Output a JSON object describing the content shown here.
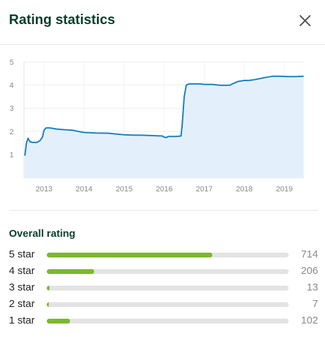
{
  "dialog": {
    "title": "Rating statistics",
    "close_icon": "close-icon"
  },
  "chart_data": {
    "type": "area",
    "title": "",
    "xlabel": "",
    "ylabel": "",
    "y_ticks": [
      "1",
      "2",
      "3",
      "4",
      "5"
    ],
    "x_ticks": [
      "2013",
      "2014",
      "2015",
      "2016",
      "2017",
      "2018",
      "2019"
    ],
    "xlim": [
      2012.5,
      2019.5
    ],
    "ylim": [
      0,
      5
    ],
    "grid": true,
    "line_color": "#1a7ec1",
    "fill_color": "#e3f0fb",
    "x": [
      2012.52,
      2012.56,
      2012.6,
      2012.65,
      2012.72,
      2012.82,
      2012.9,
      2012.96,
      2013.0,
      2013.05,
      2013.15,
      2013.3,
      2013.5,
      2013.7,
      2013.85,
      2014.0,
      2014.3,
      2014.6,
      2014.9,
      2015.0,
      2015.2,
      2015.5,
      2015.8,
      2015.95,
      2016.0,
      2016.05,
      2016.1,
      2016.3,
      2016.42,
      2016.45,
      2016.5,
      2016.55,
      2016.62,
      2016.75,
      2016.9,
      2017.0,
      2017.2,
      2017.4,
      2017.55,
      2017.65,
      2017.7,
      2017.85,
      2018.0,
      2018.1,
      2018.2,
      2018.3,
      2018.5,
      2018.7,
      2018.9,
      2019.1,
      2019.3,
      2019.48
    ],
    "values": [
      0.95,
      1.5,
      1.7,
      1.55,
      1.52,
      1.52,
      1.6,
      1.75,
      2.05,
      2.15,
      2.15,
      2.1,
      2.07,
      2.05,
      2.0,
      1.95,
      1.93,
      1.92,
      1.87,
      1.85,
      1.84,
      1.83,
      1.81,
      1.8,
      1.75,
      1.73,
      1.78,
      1.78,
      1.8,
      2.3,
      3.5,
      4.0,
      4.05,
      4.05,
      4.05,
      4.03,
      4.03,
      3.99,
      3.99,
      4.0,
      4.05,
      4.16,
      4.2,
      4.2,
      4.22,
      4.25,
      4.32,
      4.38,
      4.38,
      4.37,
      4.37,
      4.38
    ]
  },
  "overall": {
    "title": "Overall rating",
    "rows": [
      {
        "label": "5 star",
        "count": "714",
        "fraction": 0.684
      },
      {
        "label": "4 star",
        "count": "206",
        "fraction": 0.197
      },
      {
        "label": "3 star",
        "count": "13",
        "fraction": 0.012
      },
      {
        "label": "2 star",
        "count": "7",
        "fraction": 0.007
      },
      {
        "label": "1 star",
        "count": "102",
        "fraction": 0.098
      }
    ],
    "bar_color": "#7cb82f",
    "track_color": "#e3e3e3"
  }
}
